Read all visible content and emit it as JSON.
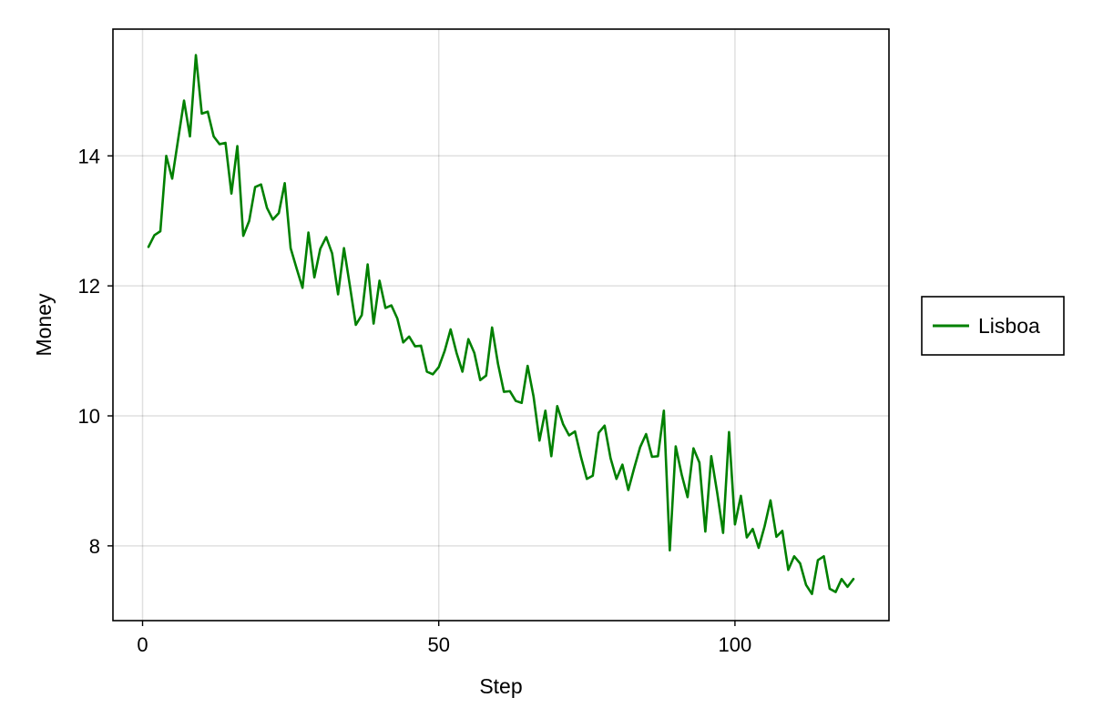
{
  "chart_data": {
    "type": "line",
    "title": "",
    "xlabel": "Step",
    "ylabel": "Money",
    "xlim": [
      -5,
      126
    ],
    "ylim": [
      6.85,
      15.95
    ],
    "x_ticks": [
      0,
      50,
      100
    ],
    "y_ticks": [
      8,
      10,
      12,
      14
    ],
    "x_tick_labels": [
      "0",
      "50",
      "100"
    ],
    "y_tick_labels": [
      "8",
      "10",
      "12",
      "14"
    ],
    "grid": true,
    "legend_position": "right",
    "series": [
      {
        "name": "Lisboa",
        "color": "#008000",
        "x": [
          1,
          2,
          3,
          4,
          5,
          6,
          7,
          8,
          9,
          10,
          11,
          12,
          13,
          14,
          15,
          16,
          17,
          18,
          19,
          20,
          21,
          22,
          23,
          24,
          25,
          26,
          27,
          28,
          29,
          30,
          31,
          32,
          33,
          34,
          35,
          36,
          37,
          38,
          39,
          40,
          41,
          42,
          43,
          44,
          45,
          46,
          47,
          48,
          49,
          50,
          51,
          52,
          53,
          54,
          55,
          56,
          57,
          58,
          59,
          60,
          61,
          62,
          63,
          64,
          65,
          66,
          67,
          68,
          69,
          70,
          71,
          72,
          73,
          74,
          75,
          76,
          77,
          78,
          79,
          80,
          81,
          82,
          83,
          84,
          85,
          86,
          87,
          88,
          89,
          90,
          91,
          92,
          93,
          94,
          95,
          96,
          97,
          98,
          99,
          100,
          101,
          102,
          103,
          104,
          105,
          106,
          107,
          108,
          109,
          110,
          111,
          112,
          113,
          114,
          115,
          116,
          117,
          118,
          119,
          120
        ],
        "values": [
          12.6,
          12.78,
          12.84,
          14.0,
          13.65,
          14.25,
          14.85,
          14.3,
          15.55,
          14.65,
          14.68,
          14.3,
          14.18,
          14.2,
          13.42,
          14.15,
          12.77,
          13.0,
          13.52,
          13.56,
          13.2,
          13.02,
          13.12,
          13.58,
          12.58,
          12.27,
          11.97,
          12.82,
          12.13,
          12.57,
          12.75,
          12.5,
          11.87,
          12.58,
          12.0,
          11.4,
          11.55,
          12.33,
          11.42,
          12.08,
          11.66,
          11.7,
          11.5,
          11.13,
          11.22,
          11.07,
          11.08,
          10.68,
          10.64,
          10.75,
          11.0,
          11.33,
          10.97,
          10.68,
          11.18,
          10.97,
          10.55,
          10.62,
          11.36,
          10.8,
          10.37,
          10.38,
          10.23,
          10.2,
          10.77,
          10.3,
          9.62,
          10.08,
          9.38,
          10.15,
          9.87,
          9.7,
          9.76,
          9.37,
          9.03,
          9.08,
          9.74,
          9.85,
          9.35,
          9.03,
          9.25,
          8.86,
          9.2,
          9.52,
          9.72,
          9.37,
          9.38,
          10.08,
          7.93,
          9.53,
          9.1,
          8.75,
          9.5,
          9.28,
          8.22,
          9.38,
          8.82,
          8.2,
          9.75,
          8.33,
          8.77,
          8.13,
          8.26,
          7.97,
          8.3,
          8.7,
          8.14,
          8.23,
          7.63,
          7.84,
          7.73,
          7.4,
          7.26,
          7.78,
          7.84,
          7.34,
          7.29,
          7.49,
          7.37,
          7.49
        ]
      }
    ]
  }
}
